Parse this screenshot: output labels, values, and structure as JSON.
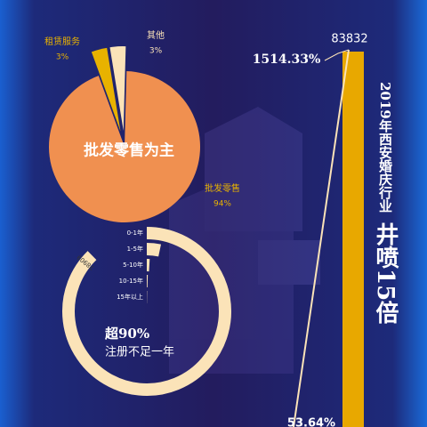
{
  "chart_data": [
    {
      "type": "pie",
      "title": "批发零售为主",
      "categories": [
        "租赁服务",
        "其他",
        "批发零售"
      ],
      "values": [
        3,
        3,
        94
      ],
      "value_labels": [
        "3%",
        "3%",
        "94%"
      ],
      "colors": [
        "#e8b200",
        "#fbe3b8",
        "#f09050"
      ]
    },
    {
      "type": "radial-bar",
      "title": "超90%",
      "subtitle": "注册不足一年",
      "categories": [
        "0-1年",
        "1-5年",
        "5-10年",
        "10-15年",
        "15年以上"
      ],
      "values": [
        78909,
        3000,
        800,
        400,
        200
      ],
      "value_labels": [
        "78909",
        null,
        null,
        null,
        null
      ],
      "xlim": [
        0,
        90000
      ],
      "color": "#fbe3b8"
    },
    {
      "type": "bar",
      "title": "2019年西安婚庆行业",
      "subtitle": "井喷15倍",
      "values": [
        83832
      ],
      "value_labels": [
        "83832"
      ],
      "annotations": [
        "1514.33%",
        "53.64%"
      ],
      "color": "#e8a800"
    }
  ]
}
